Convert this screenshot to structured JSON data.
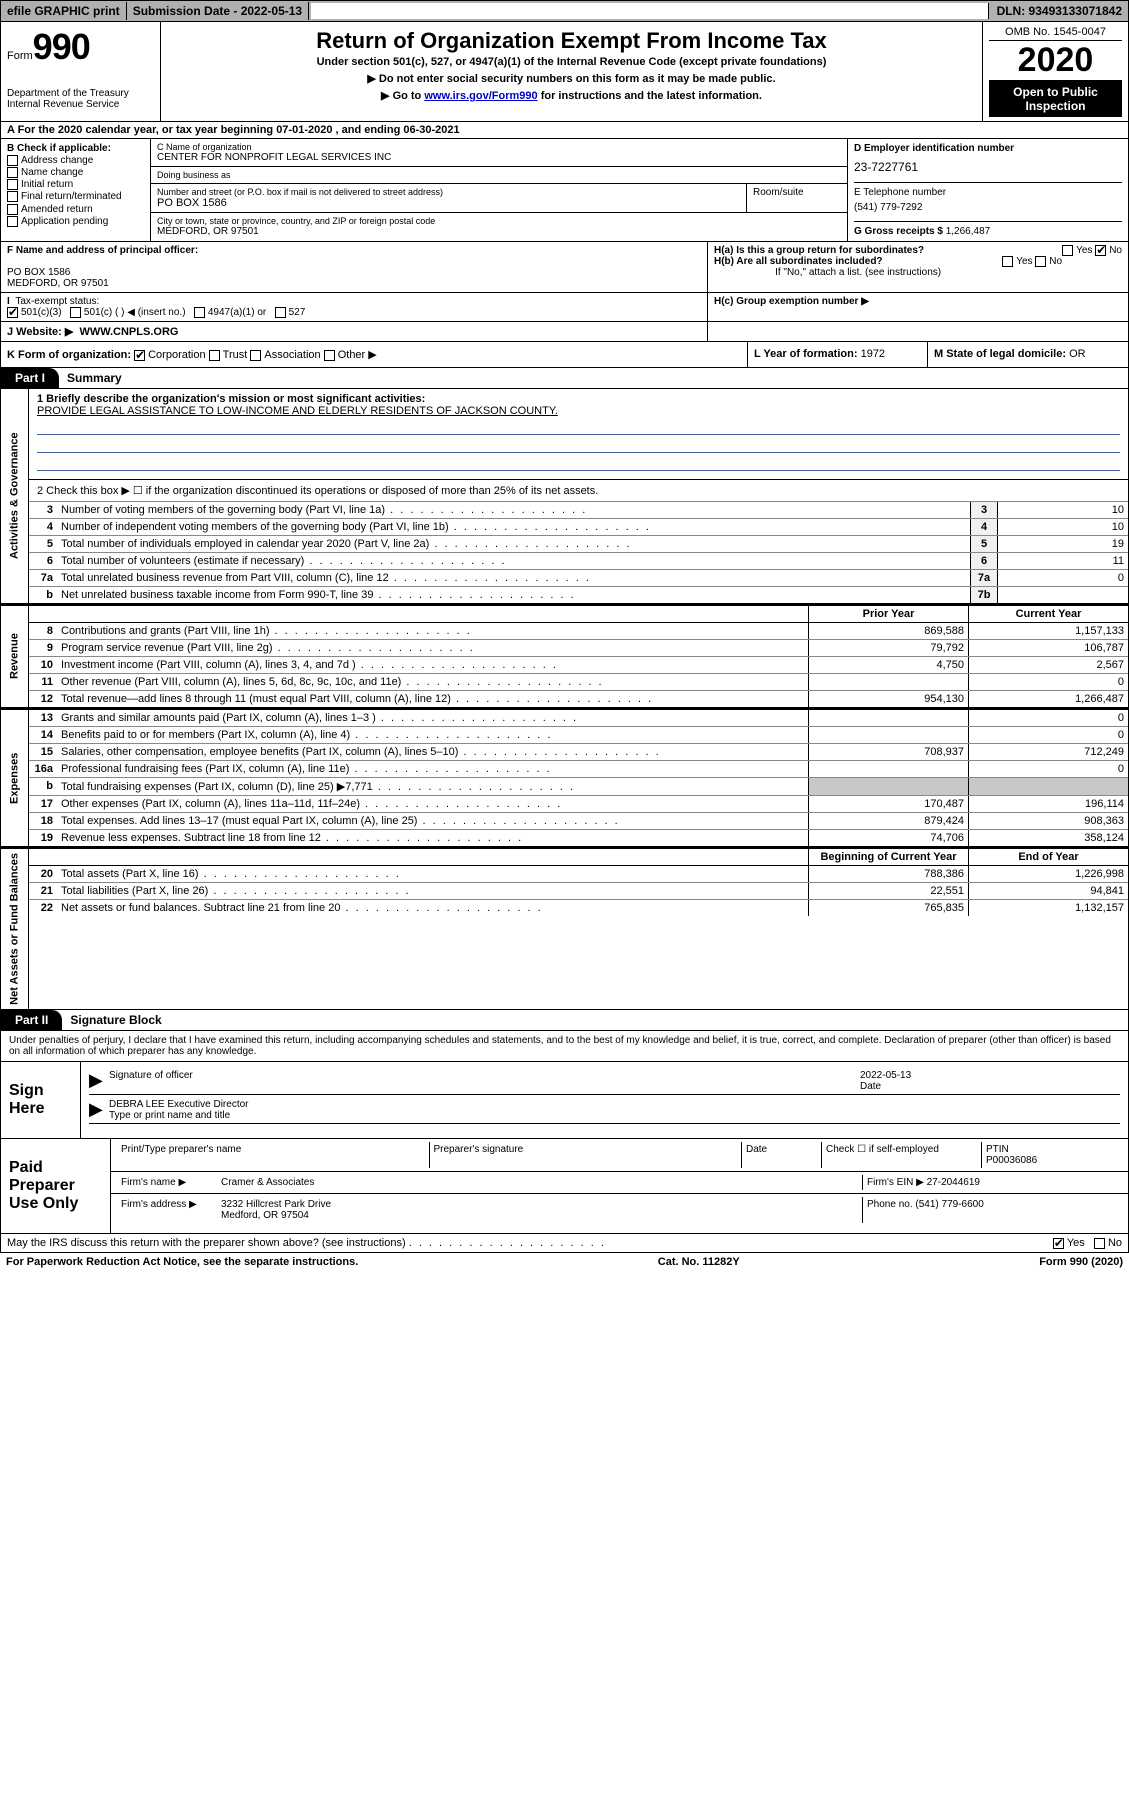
{
  "topbar": {
    "efile": "efile GRAPHIC print",
    "sub_label": "Submission Date - 2022-05-13",
    "dln": "DLN: 93493133071842"
  },
  "header": {
    "form_word": "Form",
    "form_num": "990",
    "dept": "Department of the Treasury\nInternal Revenue Service",
    "title": "Return of Organization Exempt From Income Tax",
    "subtitle": "Under section 501(c), 527, or 4947(a)(1) of the Internal Revenue Code (except private foundations)",
    "note1": "▶ Do not enter social security numbers on this form as it may be made public.",
    "note2_pre": "▶ Go to ",
    "note2_link": "www.irs.gov/Form990",
    "note2_post": " for instructions and the latest information.",
    "omb": "OMB No. 1545-0047",
    "year": "2020",
    "inspection": "Open to Public Inspection"
  },
  "period": {
    "text": "A  For the 2020 calendar year, or tax year beginning 07-01-2020   , and ending 06-30-2021"
  },
  "sectB": {
    "label": "B Check if applicable:",
    "items": [
      "Address change",
      "Name change",
      "Initial return",
      "Final return/terminated",
      "Amended return",
      "Application pending"
    ]
  },
  "sectC": {
    "name_label": "C Name of organization",
    "name": "CENTER FOR NONPROFIT LEGAL SERVICES INC",
    "dba_label": "Doing business as",
    "dba": "",
    "street_label": "Number and street (or P.O. box if mail is not delivered to street address)",
    "street": "PO BOX 1586",
    "room_label": "Room/suite",
    "city_label": "City or town, state or province, country, and ZIP or foreign postal code",
    "city": "MEDFORD, OR  97501"
  },
  "sectD": {
    "ein_label": "D Employer identification number",
    "ein": "23-7227761",
    "phone_label": "E Telephone number",
    "phone": "(541) 779-7292",
    "gross_label": "G Gross receipts $",
    "gross": "1,266,487"
  },
  "sectF": {
    "label": "F Name and address of principal officer:",
    "addr1": "PO BOX 1586",
    "addr2": "MEDFORD, OR  97501"
  },
  "sectH": {
    "a": "H(a)  Is this a group return for subordinates?",
    "a_yes": "Yes",
    "a_no": "No",
    "b": "H(b)  Are all subordinates included?",
    "b_yes": "Yes",
    "b_no": "No",
    "b_note": "If \"No,\" attach a list. (see instructions)",
    "c": "H(c)  Group exemption number ▶"
  },
  "taxStatus": {
    "label": "Tax-exempt status:",
    "opts": [
      "501(c)(3)",
      "501(c) (  ) ◀ (insert no.)",
      "4947(a)(1) or",
      "527"
    ]
  },
  "sectJ": {
    "label": "J  Website: ▶",
    "url": "WWW.CNPLS.ORG"
  },
  "sectK": {
    "label": "K Form of organization:",
    "opts": [
      "Corporation",
      "Trust",
      "Association",
      "Other ▶"
    ],
    "l_label": "L Year of formation:",
    "l_val": "1972",
    "m_label": "M State of legal domicile:",
    "m_val": "OR"
  },
  "part1": {
    "tab": "Part I",
    "title": "Summary",
    "gov_label": "Activities & Governance",
    "rev_label": "Revenue",
    "exp_label": "Expenses",
    "net_label": "Net Assets or Fund Balances",
    "mission_label": "1  Briefly describe the organization's mission or most significant activities:",
    "mission": "PROVIDE LEGAL ASSISTANCE TO LOW-INCOME AND ELDERLY RESIDENTS OF JACKSON COUNTY.",
    "line2": "2   Check this box ▶ ☐  if the organization discontinued its operations or disposed of more than 25% of its net assets.",
    "prior_hdr": "Prior Year",
    "current_hdr": "Current Year",
    "begin_hdr": "Beginning of Current Year",
    "end_hdr": "End of Year",
    "gov": [
      {
        "n": "3",
        "t": "Number of voting members of the governing body (Part VI, line 1a)",
        "b": "3",
        "v": "10"
      },
      {
        "n": "4",
        "t": "Number of independent voting members of the governing body (Part VI, line 1b)",
        "b": "4",
        "v": "10"
      },
      {
        "n": "5",
        "t": "Total number of individuals employed in calendar year 2020 (Part V, line 2a)",
        "b": "5",
        "v": "19"
      },
      {
        "n": "6",
        "t": "Total number of volunteers (estimate if necessary)",
        "b": "6",
        "v": "11"
      },
      {
        "n": "7a",
        "t": "Total unrelated business revenue from Part VIII, column (C), line 12",
        "b": "7a",
        "v": "0"
      },
      {
        "n": "b",
        "t": "Net unrelated business taxable income from Form 990-T, line 39",
        "b": "7b",
        "v": ""
      }
    ],
    "rev": [
      {
        "n": "8",
        "t": "Contributions and grants (Part VIII, line 1h)",
        "p": "869,588",
        "c": "1,157,133"
      },
      {
        "n": "9",
        "t": "Program service revenue (Part VIII, line 2g)",
        "p": "79,792",
        "c": "106,787"
      },
      {
        "n": "10",
        "t": "Investment income (Part VIII, column (A), lines 3, 4, and 7d )",
        "p": "4,750",
        "c": "2,567"
      },
      {
        "n": "11",
        "t": "Other revenue (Part VIII, column (A), lines 5, 6d, 8c, 9c, 10c, and 11e)",
        "p": "",
        "c": "0"
      },
      {
        "n": "12",
        "t": "Total revenue—add lines 8 through 11 (must equal Part VIII, column (A), line 12)",
        "p": "954,130",
        "c": "1,266,487"
      }
    ],
    "exp": [
      {
        "n": "13",
        "t": "Grants and similar amounts paid (Part IX, column (A), lines 1–3 )",
        "p": "",
        "c": "0"
      },
      {
        "n": "14",
        "t": "Benefits paid to or for members (Part IX, column (A), line 4)",
        "p": "",
        "c": "0"
      },
      {
        "n": "15",
        "t": "Salaries, other compensation, employee benefits (Part IX, column (A), lines 5–10)",
        "p": "708,937",
        "c": "712,249"
      },
      {
        "n": "16a",
        "t": "Professional fundraising fees (Part IX, column (A), line 11e)",
        "p": "",
        "c": "0"
      },
      {
        "n": "b",
        "t": "Total fundraising expenses (Part IX, column (D), line 25) ▶7,771",
        "p": "—",
        "c": "—"
      },
      {
        "n": "17",
        "t": "Other expenses (Part IX, column (A), lines 11a–11d, 11f–24e)",
        "p": "170,487",
        "c": "196,114"
      },
      {
        "n": "18",
        "t": "Total expenses. Add lines 13–17 (must equal Part IX, column (A), line 25)",
        "p": "879,424",
        "c": "908,363"
      },
      {
        "n": "19",
        "t": "Revenue less expenses. Subtract line 18 from line 12",
        "p": "74,706",
        "c": "358,124"
      }
    ],
    "net": [
      {
        "n": "20",
        "t": "Total assets (Part X, line 16)",
        "p": "788,386",
        "c": "1,226,998"
      },
      {
        "n": "21",
        "t": "Total liabilities (Part X, line 26)",
        "p": "22,551",
        "c": "94,841"
      },
      {
        "n": "22",
        "t": "Net assets or fund balances. Subtract line 21 from line 20",
        "p": "765,835",
        "c": "1,132,157"
      }
    ]
  },
  "part2": {
    "tab": "Part II",
    "title": "Signature Block",
    "perjury": "Under penalties of perjury, I declare that I have examined this return, including accompanying schedules and statements, and to the best of my knowledge and belief, it is true, correct, and complete. Declaration of preparer (other than officer) is based on all information of which preparer has any knowledge."
  },
  "sign": {
    "label": "Sign Here",
    "sig_of_officer": "Signature of officer",
    "date_lbl": "Date",
    "date": "2022-05-13",
    "name": "DEBRA LEE  Executive Director",
    "name_lbl": "Type or print name and title"
  },
  "preparer": {
    "label": "Paid Preparer Use Only",
    "print_name_lbl": "Print/Type preparer's name",
    "prep_sig_lbl": "Preparer's signature",
    "date_lbl": "Date",
    "check_lbl": "Check ☐ if self-employed",
    "ptin_lbl": "PTIN",
    "ptin": "P00036086",
    "firm_name_lbl": "Firm's name    ▶",
    "firm_name": "Cramer & Associates",
    "firm_ein_lbl": "Firm's EIN ▶",
    "firm_ein": "27-2044619",
    "firm_addr_lbl": "Firm's address ▶",
    "firm_addr1": "3232 Hillcrest Park Drive",
    "firm_addr2": "Medford, OR  97504",
    "phone_lbl": "Phone no.",
    "phone": "(541) 779-6600"
  },
  "discuss": {
    "text": "May the IRS discuss this return with the preparer shown above? (see instructions)",
    "yes": "Yes",
    "no": "No"
  },
  "footer": {
    "left": "For Paperwork Reduction Act Notice, see the separate instructions.",
    "mid": "Cat. No. 11282Y",
    "right": "Form 990 (2020)"
  }
}
